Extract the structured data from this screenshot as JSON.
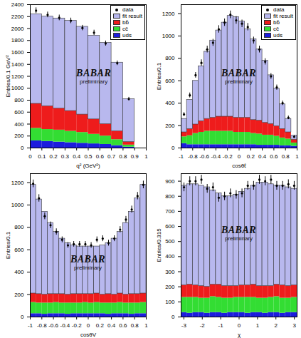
{
  "chart_data": [
    {
      "type": "bar",
      "stacked": true,
      "legend": "top-right",
      "xlabel": "q² (GeV²)",
      "ylabel": "Entries/0.1 GeV²",
      "annotations": [
        "BABAR",
        "preliminary"
      ],
      "bins": [
        0,
        0.1,
        0.2,
        0.3,
        0.4,
        0.5,
        0.6,
        0.7,
        0.8,
        0.9
      ],
      "xlim": [
        0,
        1
      ],
      "xticks": [
        0,
        0.1,
        0.2,
        0.3,
        0.4,
        0.5,
        0.6,
        0.7,
        0.8,
        0.9,
        1
      ],
      "ylim": [
        0,
        2400
      ],
      "yticks": [
        0,
        200,
        400,
        600,
        800,
        1000,
        1200,
        1400,
        1600,
        1800,
        2000,
        2200,
        2400
      ],
      "series": [
        {
          "name": "data",
          "type": "scatter",
          "marker": "circle",
          "color": "#000000",
          "values": [
            2300,
            2230,
            2180,
            2130,
            2010,
            1930,
            1750,
            1420,
            820
          ],
          "errors": [
            48,
            47,
            47,
            46,
            45,
            44,
            42,
            38,
            29
          ]
        },
        {
          "name": "fit result",
          "color": "#b8b8ee",
          "values": [
            1500,
            1500,
            1510,
            1510,
            1470,
            1400,
            1360,
            1150,
            720
          ]
        },
        {
          "name": "bb̄",
          "color": "#ee1c1c",
          "values": [
            410,
            390,
            360,
            340,
            300,
            250,
            200,
            140,
            50
          ]
        },
        {
          "name": "cc̄",
          "color": "#33dd33",
          "values": [
            210,
            200,
            200,
            190,
            180,
            160,
            140,
            100,
            35
          ]
        },
        {
          "name": "uds",
          "color": "#1c1cdd",
          "values": [
            120,
            110,
            100,
            90,
            80,
            70,
            60,
            40,
            15
          ]
        }
      ]
    },
    {
      "type": "bar",
      "stacked": true,
      "legend": "top-right",
      "xlabel": "cosθℓ",
      "ylabel": "Entries/0.1",
      "annotations": [
        "BABAR",
        "preliminary"
      ],
      "bins": [
        -1,
        -0.9,
        -0.8,
        -0.7,
        -0.6,
        -0.5,
        -0.4,
        -0.3,
        -0.2,
        -0.1,
        0,
        0.1,
        0.2,
        0.3,
        0.4,
        0.5,
        0.6,
        0.7,
        0.8,
        0.9,
        1
      ],
      "xlim": [
        -1,
        1
      ],
      "xticks": [
        -1,
        -0.8,
        -0.6,
        -0.4,
        -0.2,
        0,
        0.2,
        0.4,
        0.6,
        0.8,
        1
      ],
      "ylim": [
        0,
        1280
      ],
      "yticks": [
        0,
        200,
        400,
        600,
        800,
        1000,
        1200
      ],
      "series": [
        {
          "name": "data",
          "type": "scatter",
          "marker": "circle",
          "color": "#000000",
          "values": [
            300,
            470,
            650,
            760,
            880,
            940,
            1060,
            1120,
            1190,
            1140,
            1110,
            1080,
            960,
            880,
            770,
            640,
            540,
            400,
            270,
            100
          ],
          "errors": [
            17,
            22,
            25,
            28,
            30,
            31,
            33,
            33,
            34,
            34,
            33,
            33,
            31,
            30,
            28,
            25,
            23,
            20,
            16,
            10
          ]
        },
        {
          "name": "fit result",
          "color": "#b8b8ee",
          "values": [
            120,
            260,
            390,
            490,
            600,
            690,
            770,
            840,
            900,
            900,
            860,
            790,
            720,
            635,
            555,
            435,
            335,
            220,
            120,
            35
          ]
        },
        {
          "name": "bb̄",
          "color": "#ee1c1c",
          "values": [
            40,
            60,
            80,
            100,
            110,
            120,
            130,
            130,
            130,
            130,
            130,
            130,
            120,
            120,
            110,
            100,
            90,
            80,
            60,
            30
          ]
        },
        {
          "name": "cc̄",
          "color": "#33dd33",
          "values": [
            60,
            80,
            100,
            110,
            120,
            120,
            120,
            120,
            120,
            110,
            110,
            110,
            100,
            100,
            90,
            90,
            80,
            70,
            60,
            30
          ]
        },
        {
          "name": "uds",
          "color": "#1c1cdd",
          "values": [
            40,
            30,
            30,
            30,
            30,
            30,
            30,
            30,
            30,
            30,
            30,
            30,
            30,
            25,
            25,
            25,
            25,
            20,
            20,
            15
          ]
        }
      ]
    },
    {
      "type": "bar",
      "stacked": true,
      "xlabel": "cosθV",
      "ylabel": "Entries/0.1",
      "annotations": [
        "BABAR",
        "preliminary"
      ],
      "bins": [
        -1,
        -0.9,
        -0.8,
        -0.7,
        -0.6,
        -0.5,
        -0.4,
        -0.3,
        -0.2,
        -0.1,
        0,
        0.1,
        0.2,
        0.3,
        0.4,
        0.5,
        0.6,
        0.7,
        0.8,
        0.9,
        1
      ],
      "xlim": [
        -1,
        1
      ],
      "xticks": [
        -1,
        -0.8,
        -0.6,
        -0.4,
        -0.2,
        0,
        0.2,
        0.4,
        0.6,
        0.8,
        1
      ],
      "ylim": [
        0,
        1280
      ],
      "yticks": [
        0,
        200,
        400,
        600,
        800,
        1000,
        1200
      ],
      "series": [
        {
          "name": "data",
          "type": "scatter",
          "marker": "circle",
          "color": "#000000",
          "values": [
            1190,
            1060,
            900,
            820,
            760,
            690,
            640,
            650,
            650,
            650,
            640,
            690,
            700,
            660,
            700,
            780,
            870,
            960,
            1080,
            1180
          ],
          "errors": [
            34,
            33,
            30,
            29,
            28,
            26,
            25,
            25,
            25,
            25,
            25,
            26,
            26,
            26,
            26,
            28,
            29,
            31,
            33,
            34
          ]
        },
        {
          "name": "fit result",
          "color": "#b8b8ee",
          "values": [
            970,
            845,
            740,
            635,
            555,
            495,
            460,
            435,
            425,
            425,
            425,
            420,
            440,
            455,
            500,
            550,
            640,
            735,
            855,
            970
          ]
        },
        {
          "name": "bb̄",
          "color": "#ee1c1c",
          "values": [
            80,
            80,
            75,
            80,
            75,
            80,
            75,
            80,
            80,
            75,
            80,
            80,
            75,
            80,
            75,
            80,
            75,
            80,
            80,
            80
          ]
        },
        {
          "name": "cc̄",
          "color": "#33dd33",
          "values": [
            100,
            95,
            100,
            95,
            100,
            95,
            100,
            95,
            95,
            100,
            95,
            100,
            95,
            100,
            95,
            100,
            95,
            100,
            95,
            100
          ]
        },
        {
          "name": "uds",
          "color": "#1c1cdd",
          "values": [
            30,
            30,
            25,
            30,
            30,
            30,
            25,
            30,
            30,
            30,
            30,
            30,
            30,
            25,
            30,
            30,
            30,
            25,
            30,
            30
          ]
        }
      ]
    },
    {
      "type": "bar",
      "stacked": true,
      "xlabel": "χ",
      "ylabel": "Entries/0.315",
      "annotations": [
        "BABAR",
        "preliminary"
      ],
      "bins": [
        -3.15,
        -2.835,
        -2.52,
        -2.205,
        -1.89,
        -1.575,
        -1.26,
        -0.945,
        -0.63,
        -0.315,
        0,
        0.315,
        0.63,
        0.945,
        1.26,
        1.575,
        1.89,
        2.205,
        2.52,
        2.835,
        3.15
      ],
      "xlim": [
        -3.15,
        3.15
      ],
      "xticks": [
        -3,
        -2,
        -1,
        0,
        1,
        2,
        3
      ],
      "ylim": [
        0,
        950
      ],
      "yticks": [
        0,
        100,
        200,
        300,
        400,
        500,
        600,
        700,
        800,
        900
      ],
      "series": [
        {
          "name": "data",
          "type": "scatter",
          "marker": "circle",
          "color": "#000000",
          "values": [
            860,
            900,
            900,
            910,
            850,
            860,
            790,
            800,
            820,
            810,
            820,
            870,
            870,
            910,
            900,
            910,
            870,
            870,
            880,
            870
          ],
          "errors": [
            29,
            30,
            30,
            30,
            29,
            29,
            28,
            28,
            29,
            28,
            29,
            29,
            29,
            30,
            30,
            30,
            29,
            29,
            30,
            29
          ]
        },
        {
          "name": "fit result",
          "color": "#b8b8ee",
          "values": [
            660,
            665,
            670,
            665,
            660,
            625,
            605,
            595,
            595,
            605,
            620,
            640,
            655,
            685,
            685,
            675,
            655,
            660,
            655,
            640
          ]
        },
        {
          "name": "bb̄",
          "color": "#ee1c1c",
          "values": [
            80,
            85,
            80,
            80,
            75,
            80,
            85,
            80,
            80,
            75,
            80,
            80,
            85,
            80,
            80,
            75,
            80,
            85,
            80,
            80
          ]
        },
        {
          "name": "cc̄",
          "color": "#33dd33",
          "values": [
            100,
            105,
            100,
            95,
            100,
            105,
            100,
            100,
            95,
            100,
            100,
            105,
            100,
            95,
            100,
            100,
            105,
            100,
            95,
            100
          ]
        },
        {
          "name": "uds",
          "color": "#1c1cdd",
          "values": [
            30,
            25,
            30,
            30,
            25,
            30,
            30,
            25,
            30,
            30,
            30,
            25,
            30,
            30,
            25,
            30,
            30,
            25,
            30,
            30
          ]
        }
      ]
    }
  ]
}
